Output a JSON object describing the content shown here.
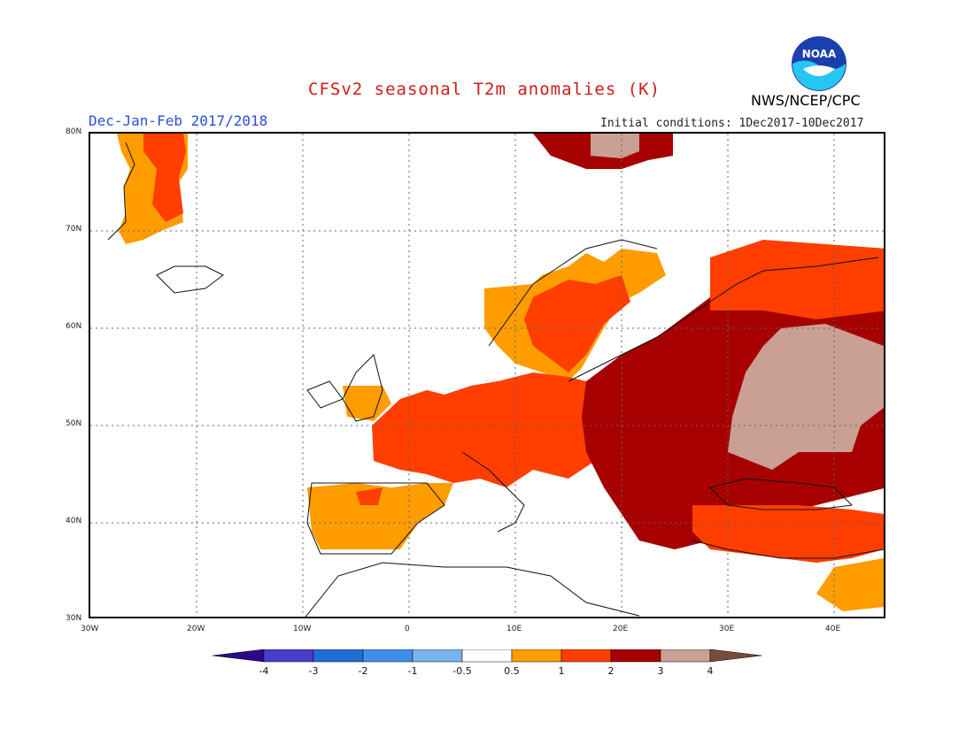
{
  "title": "CFSv2 seasonal T2m anomalies (K)",
  "period": "Dec-Jan-Feb 2017/2018",
  "initial_conditions": "Initial conditions: 1Dec2017-10Dec2017",
  "agency": "NWS/NCEP/CPC",
  "logo_text": "NOAA",
  "map": {
    "region": "Europe",
    "projection": "cylindrical equidistant",
    "lon_range": [
      -30,
      45
    ],
    "lat_range": [
      30,
      80
    ],
    "grid": "dotted, every 10 degrees",
    "lat_labels": [
      "80N",
      "70N",
      "60N",
      "50N",
      "40N",
      "30N"
    ],
    "lon_labels": [
      "30W",
      "20W",
      "10W",
      "0",
      "10E",
      "20E",
      "30E",
      "40E"
    ]
  },
  "legend": {
    "labels": [
      "-4",
      "-3",
      "-2",
      "-1",
      "-0.5",
      "0.5",
      "1",
      "2",
      "3",
      "4"
    ],
    "colors": [
      "#2a0a8c",
      "#4a3ccf",
      "#1f6fd6",
      "#3f8fea",
      "#78b4ee",
      "#ffffff",
      "#ff9c00",
      "#ff3e00",
      "#a60000",
      "#c9a093",
      "#7a4a3c"
    ]
  },
  "anomaly_regions": [
    {
      "name": "Greenland east coast",
      "level": "0.5-2"
    },
    {
      "name": "Svalbard",
      "level": "2-4"
    },
    {
      "name": "Scandinavia",
      "level": "0.5-3"
    },
    {
      "name": "Western Europe",
      "level": "1-2"
    },
    {
      "name": "Iberia",
      "level": "0.5-1"
    },
    {
      "name": "Eastern Europe and Balkans",
      "level": "2-3"
    },
    {
      "name": "Western Russia",
      "level": "3-4"
    },
    {
      "name": "Black Sea and Turkey",
      "level": "1-2"
    }
  ]
}
